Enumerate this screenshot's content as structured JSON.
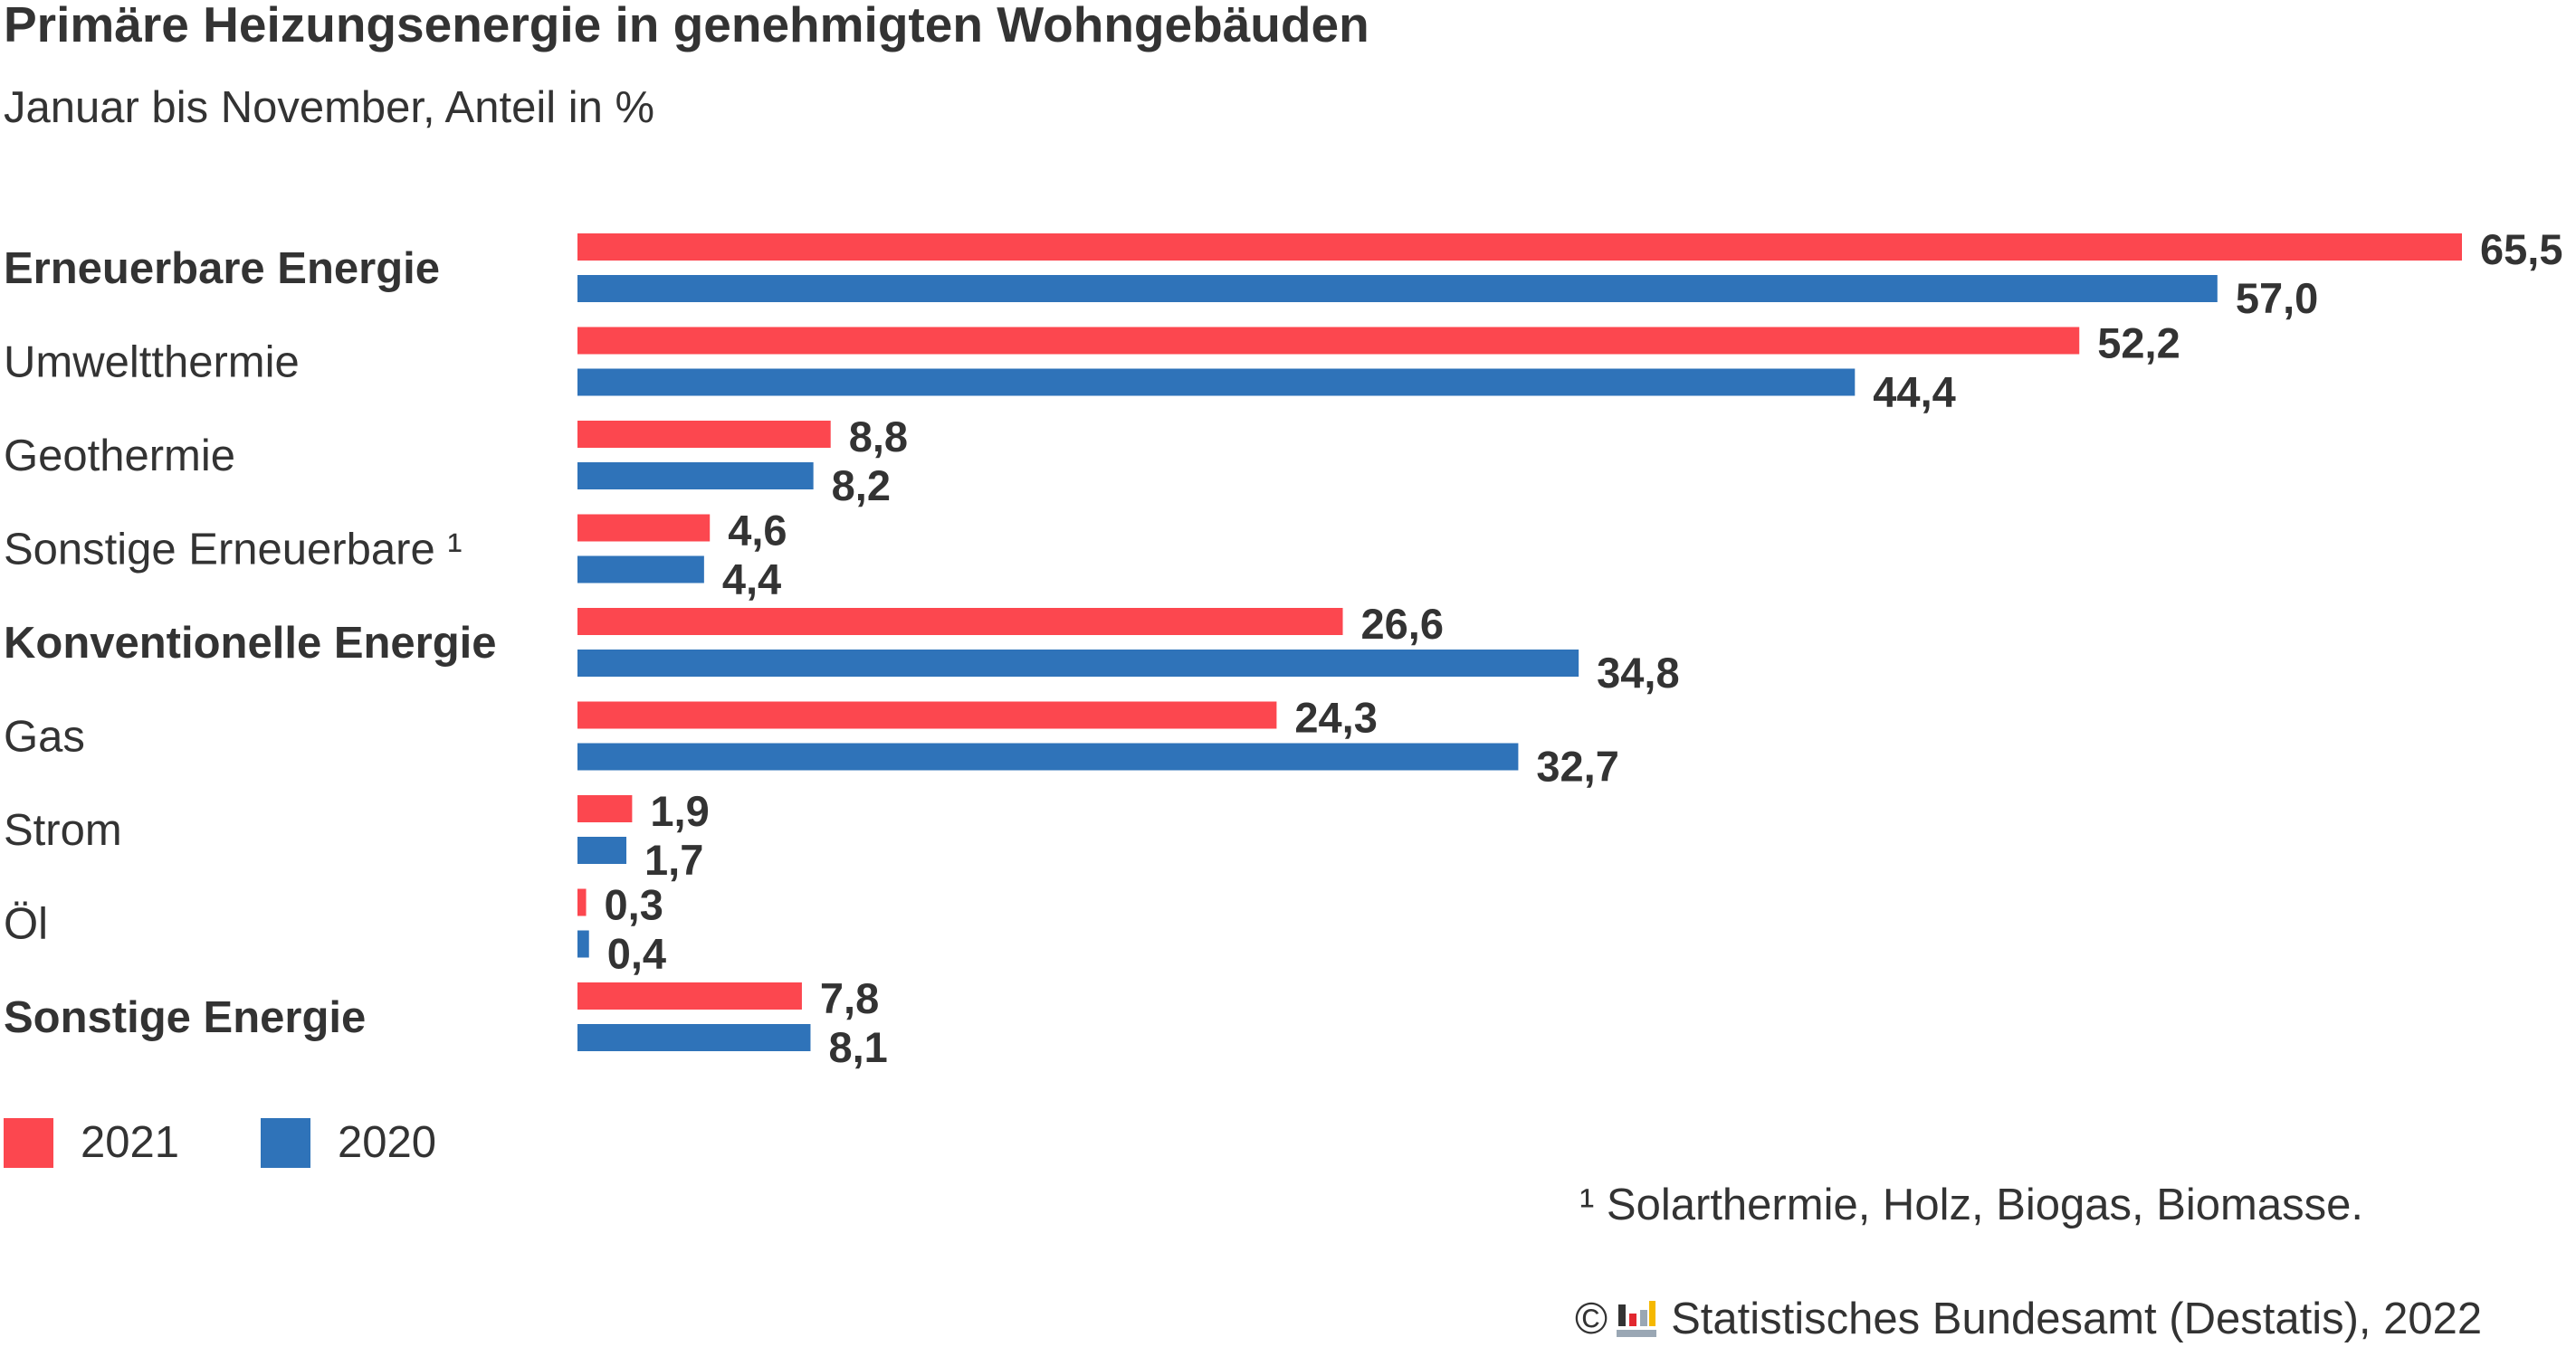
{
  "title": "Primäre Heizungsenergie in genehmigten Wohngebäuden",
  "subtitle": "Januar bis November, Anteil in %",
  "colors": {
    "series_2021": "#fc474f",
    "series_2020": "#2f73b9",
    "text": "#333333"
  },
  "chart_data": {
    "type": "bar",
    "orientation": "horizontal",
    "categories": [
      "Erneuerbare Energie",
      "Umweltthermie",
      "Geothermie",
      "Sonstige Erneuerbare ¹",
      "Konventionelle Energie",
      "Gas",
      "Strom",
      "Öl",
      "Sonstige Energie"
    ],
    "bold_categories": [
      true,
      false,
      false,
      false,
      true,
      false,
      false,
      false,
      true
    ],
    "series": [
      {
        "name": "2021",
        "values": [
          65.5,
          52.2,
          8.8,
          4.6,
          26.6,
          24.3,
          1.9,
          0.3,
          7.8
        ],
        "labels": [
          "65,5",
          "52,2",
          "8,8",
          "4,6",
          "26,6",
          "24,3",
          "1,9",
          "0,3",
          "7,8"
        ]
      },
      {
        "name": "2020",
        "values": [
          57.0,
          44.4,
          8.2,
          4.4,
          34.8,
          32.7,
          1.7,
          0.4,
          8.1
        ],
        "labels": [
          "57,0",
          "44,4",
          "8,2",
          "4,4",
          "34,8",
          "32,7",
          "1,7",
          "0,4",
          "8,1"
        ]
      }
    ],
    "xlim": [
      0,
      65.5
    ],
    "grid": false,
    "legend": "bottom-left"
  },
  "legend": {
    "items": [
      {
        "label": "2021"
      },
      {
        "label": "2020"
      }
    ]
  },
  "footnote": "¹ Solarthermie, Holz, Biogas, Biomasse.",
  "source": {
    "copyright_symbol": "©",
    "logo_icon": "destatis-logo-icon",
    "text": "Statistisches Bundesamt (Destatis), 2022"
  }
}
